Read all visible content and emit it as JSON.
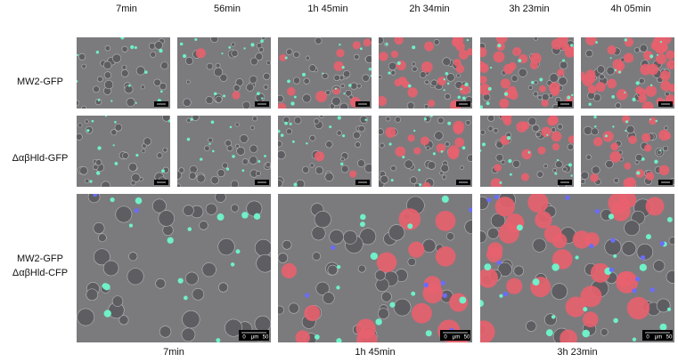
{
  "header": {
    "column_labels": [
      "7min",
      "56min",
      "1h 45min",
      "2h 34min",
      "3h 23min",
      "4h 05min"
    ]
  },
  "rows": {
    "labels": [
      "MW2-GFP",
      "ΔαβHld-GFP"
    ],
    "combined_label": [
      "MW2-GFP",
      "ΔαβHld-CFP"
    ]
  },
  "footer": {
    "column_labels": [
      "7min",
      "1h 45min",
      "3h 23min"
    ]
  },
  "scale_bar": {
    "start": "0",
    "unit": "μm",
    "end": "50"
  }
}
